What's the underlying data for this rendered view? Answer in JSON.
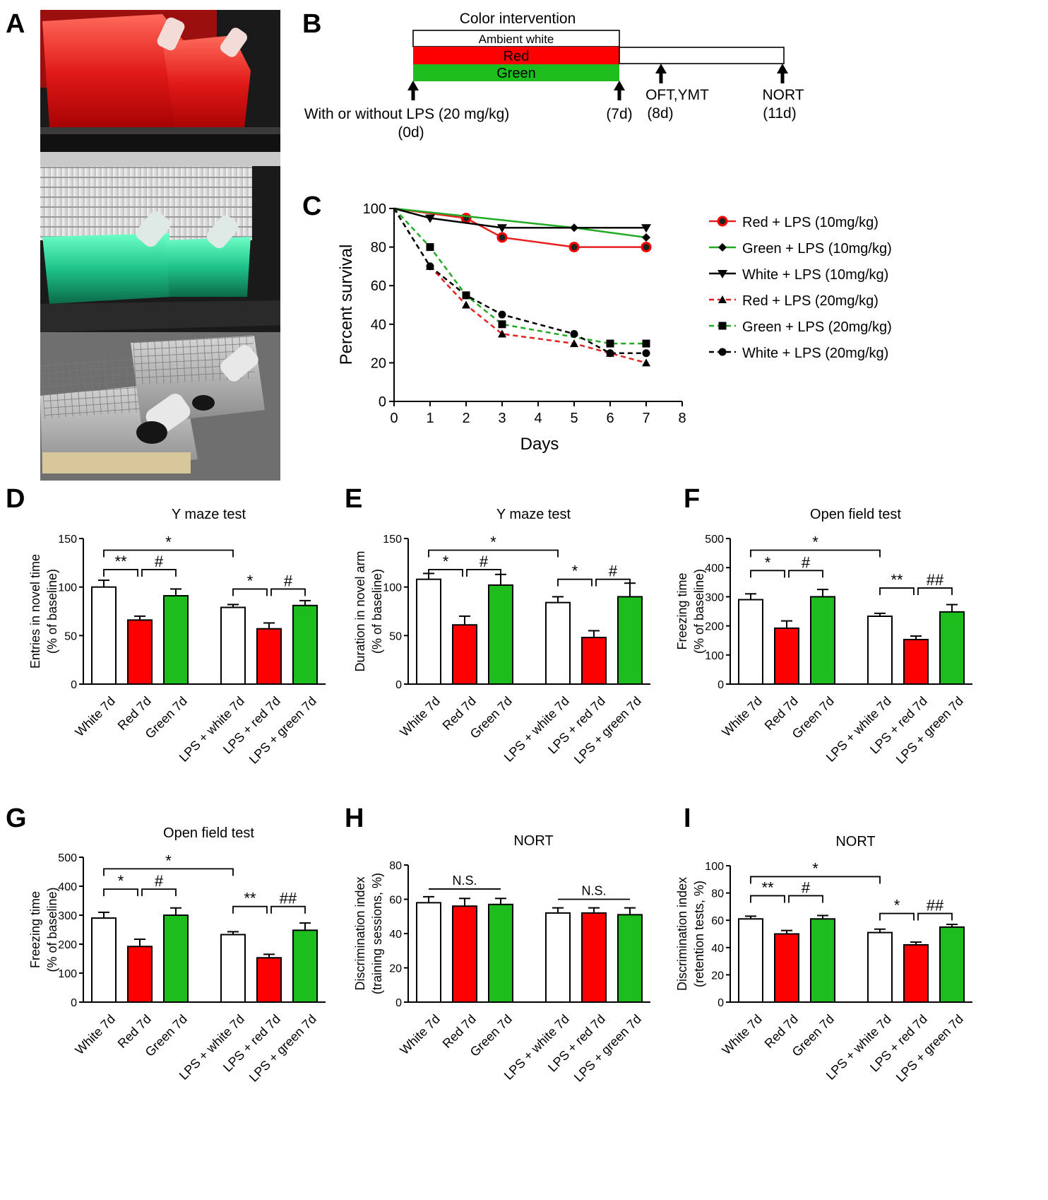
{
  "panel_labels": [
    "A",
    "B",
    "C",
    "D",
    "E",
    "F",
    "G",
    "H",
    "I"
  ],
  "colors": {
    "white": "#ffffff",
    "red": "#ff0000",
    "green": "#1cbd1c",
    "line_green": "#22aa22",
    "black": "#000000"
  },
  "photo": {
    "icons": [
      "red-cage-shelf-icon",
      "green-cage-shelf-icon",
      "white-cage-shelf-icon"
    ]
  },
  "timeline": {
    "title": "Color intervention",
    "bars": [
      "Ambient white",
      "Red",
      "Green"
    ],
    "start_label": "With or without LPS (20 mg/kg)",
    "start_day": "(0d)",
    "end_day": "(7d)",
    "test1_label": "OFT,YMT",
    "test1_day": "(8d)",
    "test2_label": "NORT",
    "test2_day": "(11d)"
  },
  "chart_data": [
    {
      "panel": "C",
      "type": "line",
      "xlabel": "Days",
      "ylabel": "Percent survival",
      "xlim": [
        0,
        8
      ],
      "ylim": [
        0,
        100
      ],
      "xticks": [
        "0",
        "1",
        "2",
        "3",
        "4",
        "5",
        "6",
        "7",
        "8"
      ],
      "yticks": [
        "0",
        "20",
        "40",
        "60",
        "80",
        "100"
      ],
      "legend_position": "right",
      "series": [
        {
          "name": "Red + LPS (10mg/kg)",
          "color": "#e62020",
          "dash": false,
          "marker": "circle-red",
          "x": [
            0,
            2,
            3,
            5,
            7
          ],
          "y": [
            100,
            95,
            85,
            80,
            80
          ]
        },
        {
          "name": "Green + LPS (10mg/kg)",
          "color": "#22aa22",
          "dash": false,
          "marker": "diamond",
          "x": [
            0,
            5,
            7
          ],
          "y": [
            100,
            90,
            85
          ]
        },
        {
          "name": "White + LPS (10mg/kg)",
          "color": "#000000",
          "dash": false,
          "marker": "triangle-down",
          "x": [
            0,
            1,
            3,
            7
          ],
          "y": [
            100,
            95,
            90,
            90
          ]
        },
        {
          "name": "Red + LPS (20mg/kg)",
          "color": "#e62020",
          "dash": true,
          "marker": "triangle-up",
          "x": [
            0,
            1,
            2,
            3,
            5,
            6,
            7
          ],
          "y": [
            100,
            70,
            50,
            35,
            30,
            25,
            20
          ]
        },
        {
          "name": "Green + LPS (20mg/kg)",
          "color": "#22aa22",
          "dash": true,
          "marker": "square",
          "x": [
            0,
            1,
            2,
            3,
            6,
            7
          ],
          "y": [
            100,
            80,
            55,
            40,
            30,
            30
          ]
        },
        {
          "name": "White + LPS (20mg/kg)",
          "color": "#000000",
          "dash": true,
          "marker": "circle",
          "x": [
            0,
            1,
            2,
            3,
            5,
            6,
            7
          ],
          "y": [
            100,
            70,
            55,
            45,
            35,
            25,
            25
          ]
        }
      ]
    },
    {
      "panel": "D",
      "type": "bar",
      "title": "Y maze test",
      "ylabel": [
        "Entries in novel time",
        "(% of baseline)"
      ],
      "ylim": [
        0,
        150
      ],
      "yticks": [
        "0",
        "50",
        "100",
        "150"
      ],
      "categories": [
        "White 7d",
        "Red 7d",
        "Green 7d",
        "LPS + white 7d",
        "LPS + red 7d",
        "LPS + green 7d"
      ],
      "bar_colors": [
        "white",
        "red",
        "green",
        "white",
        "red",
        "green"
      ],
      "values": [
        100,
        66,
        91,
        79,
        57,
        81
      ],
      "errors": [
        7,
        4,
        7,
        3,
        6,
        5
      ],
      "annotations": [
        {
          "text": "**",
          "from": 0,
          "to": 1,
          "y": 118
        },
        {
          "text": "#",
          "from": 1,
          "to": 2,
          "y": 118
        },
        {
          "text": "*",
          "from": 0,
          "to": 3,
          "y": 138
        },
        {
          "text": "*",
          "from": 3,
          "to": 4,
          "y": 98
        },
        {
          "text": "#",
          "from": 4,
          "to": 5,
          "y": 98
        }
      ]
    },
    {
      "panel": "E",
      "type": "bar",
      "title": "Y maze test",
      "ylabel": [
        "Duration in novel arm",
        "(% of baseline)"
      ],
      "ylim": [
        0,
        150
      ],
      "yticks": [
        "0",
        "50",
        "100",
        "150"
      ],
      "categories": [
        "White 7d",
        "Red 7d",
        "Green 7d",
        "LPS + white 7d",
        "LPS + red 7d",
        "LPS + green 7d"
      ],
      "bar_colors": [
        "white",
        "red",
        "green",
        "white",
        "red",
        "green"
      ],
      "values": [
        108,
        61,
        102,
        84,
        48,
        90
      ],
      "errors": [
        6,
        9,
        11,
        6,
        7,
        14
      ],
      "annotations": [
        {
          "text": "*",
          "from": 0,
          "to": 1,
          "y": 118
        },
        {
          "text": "#",
          "from": 1,
          "to": 2,
          "y": 118
        },
        {
          "text": "*",
          "from": 0,
          "to": 3,
          "y": 138
        },
        {
          "text": "*",
          "from": 3,
          "to": 4,
          "y": 108
        },
        {
          "text": "#",
          "from": 4,
          "to": 5,
          "y": 108
        }
      ]
    },
    {
      "panel": "F",
      "type": "bar",
      "title": "Open field test",
      "ylabel": [
        "Freezing time",
        "(% of baseline)"
      ],
      "ylim": [
        0,
        500
      ],
      "yticks": [
        "0",
        "100",
        "200",
        "300",
        "400",
        "500"
      ],
      "categories": [
        "White 7d",
        "Red 7d",
        "Green 7d",
        "LPS + white 7d",
        "LPS + red 7d",
        "LPS + green 7d"
      ],
      "bar_colors": [
        "white",
        "red",
        "green",
        "white",
        "red",
        "green"
      ],
      "values": [
        290,
        192,
        300,
        233,
        153,
        248
      ],
      "errors": [
        20,
        25,
        25,
        10,
        12,
        25
      ],
      "annotations": [
        {
          "text": "*",
          "from": 0,
          "to": 1,
          "y": 390
        },
        {
          "text": "#",
          "from": 1,
          "to": 2,
          "y": 390
        },
        {
          "text": "*",
          "from": 0,
          "to": 3,
          "y": 460
        },
        {
          "text": "**",
          "from": 3,
          "to": 4,
          "y": 330
        },
        {
          "text": "##",
          "from": 4,
          "to": 5,
          "y": 330
        }
      ]
    },
    {
      "panel": "G",
      "type": "bar",
      "title": "Open field test",
      "ylabel": [
        "Freezing time",
        "(% of baseline)"
      ],
      "ylim": [
        0,
        500
      ],
      "yticks": [
        "0",
        "100",
        "200",
        "300",
        "400",
        "500"
      ],
      "categories": [
        "White 7d",
        "Red 7d",
        "Green 7d",
        "LPS + white 7d",
        "LPS + red 7d",
        "LPS + green 7d"
      ],
      "bar_colors": [
        "white",
        "red",
        "green",
        "white",
        "red",
        "green"
      ],
      "values": [
        290,
        192,
        300,
        233,
        153,
        248
      ],
      "errors": [
        20,
        25,
        25,
        10,
        12,
        25
      ],
      "annotations": [
        {
          "text": "*",
          "from": 0,
          "to": 1,
          "y": 390
        },
        {
          "text": "#",
          "from": 1,
          "to": 2,
          "y": 390
        },
        {
          "text": "*",
          "from": 0,
          "to": 3,
          "y": 460
        },
        {
          "text": "**",
          "from": 3,
          "to": 4,
          "y": 330
        },
        {
          "text": "##",
          "from": 4,
          "to": 5,
          "y": 330
        }
      ]
    },
    {
      "panel": "H",
      "type": "bar",
      "title": "NORT",
      "ylabel": [
        "Discrimination index",
        "(training sessions, %)"
      ],
      "ylim": [
        0,
        80
      ],
      "yticks": [
        "0",
        "20",
        "40",
        "60",
        "80"
      ],
      "categories": [
        "White 7d",
        "Red 7d",
        "Green 7d",
        "LPS + white 7d",
        "LPS + red 7d",
        "LPS + green 7d"
      ],
      "bar_colors": [
        "white",
        "red",
        "green",
        "white",
        "red",
        "green"
      ],
      "values": [
        58,
        56,
        57,
        52,
        52,
        51
      ],
      "errors": [
        3.5,
        4.5,
        3.5,
        3,
        3,
        4
      ],
      "annotations": [
        {
          "text": "N.S.",
          "from": 0,
          "to": 2,
          "y": 66,
          "flat": true
        },
        {
          "text": "N.S.",
          "from": 3,
          "to": 5,
          "y": 60,
          "flat": true
        }
      ]
    },
    {
      "panel": "I",
      "type": "bar",
      "title": "NORT",
      "ylabel": [
        "Discrimination index",
        "(retention tests, %)"
      ],
      "ylim": [
        0,
        100
      ],
      "yticks": [
        "0",
        "20",
        "40",
        "60",
        "80",
        "100"
      ],
      "categories": [
        "White 7d",
        "Red 7d",
        "Green 7d",
        "LPS + white 7d",
        "LPS + red 7d",
        "LPS + green 7d"
      ],
      "bar_colors": [
        "white",
        "red",
        "green",
        "white",
        "red",
        "green"
      ],
      "values": [
        61,
        50,
        61,
        51,
        42,
        55
      ],
      "errors": [
        2,
        2.5,
        2.5,
        2.5,
        2,
        2
      ],
      "annotations": [
        {
          "text": "**",
          "from": 0,
          "to": 1,
          "y": 78
        },
        {
          "text": "#",
          "from": 1,
          "to": 2,
          "y": 78
        },
        {
          "text": "*",
          "from": 0,
          "to": 3,
          "y": 92
        },
        {
          "text": "*",
          "from": 3,
          "to": 4,
          "y": 65
        },
        {
          "text": "##",
          "from": 4,
          "to": 5,
          "y": 65
        }
      ]
    }
  ]
}
